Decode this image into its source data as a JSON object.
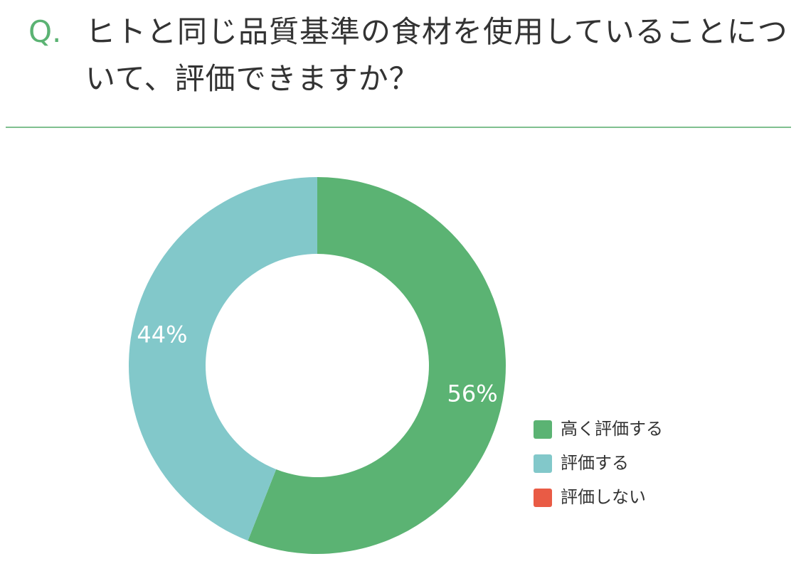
{
  "chart_data": {
    "type": "donut",
    "prefix": "Q.",
    "title": "ヒトと同じ品質基準の食材を使用していることについて、評価できますか？",
    "categories": [
      "高く評価する",
      "評価する",
      "評価しない"
    ],
    "values": [
      56,
      44,
      0
    ],
    "value_labels": [
      "56%",
      "44%",
      null
    ],
    "colors": [
      "#5bb373",
      "#82c8ca",
      "#e95b45"
    ],
    "legend": "bottom-right"
  }
}
